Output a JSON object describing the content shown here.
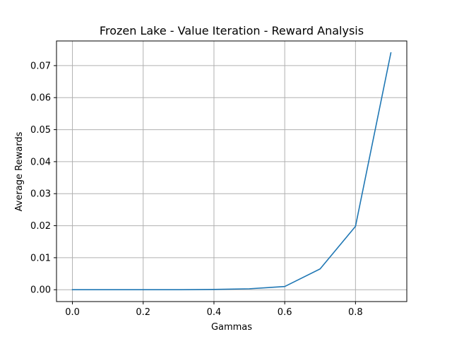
{
  "chart_data": {
    "type": "line",
    "title": "Frozen Lake - Value Iteration - Reward Analysis",
    "xlabel": "Gammas",
    "ylabel": "Average Rewards",
    "xlim": [
      -0.045,
      0.945
    ],
    "ylim": [
      -0.0037,
      0.0777
    ],
    "xticks": [
      0.0,
      0.2,
      0.4,
      0.6,
      0.8
    ],
    "xtick_labels": [
      "0.0",
      "0.2",
      "0.4",
      "0.6",
      "0.8"
    ],
    "yticks": [
      0.0,
      0.01,
      0.02,
      0.03,
      0.04,
      0.05,
      0.06,
      0.07
    ],
    "ytick_labels": [
      "0.00",
      "0.01",
      "0.02",
      "0.03",
      "0.04",
      "0.05",
      "0.06",
      "0.07"
    ],
    "grid": true,
    "series": [
      {
        "color": "#1f77b4",
        "x": [
          0.0,
          0.1,
          0.2,
          0.3,
          0.4,
          0.5,
          0.6,
          0.7,
          0.8,
          0.9
        ],
        "y": [
          0.0,
          0.0,
          0.0,
          0.0,
          0.0001,
          0.0003,
          0.001,
          0.0065,
          0.0198,
          0.074
        ]
      }
    ]
  }
}
